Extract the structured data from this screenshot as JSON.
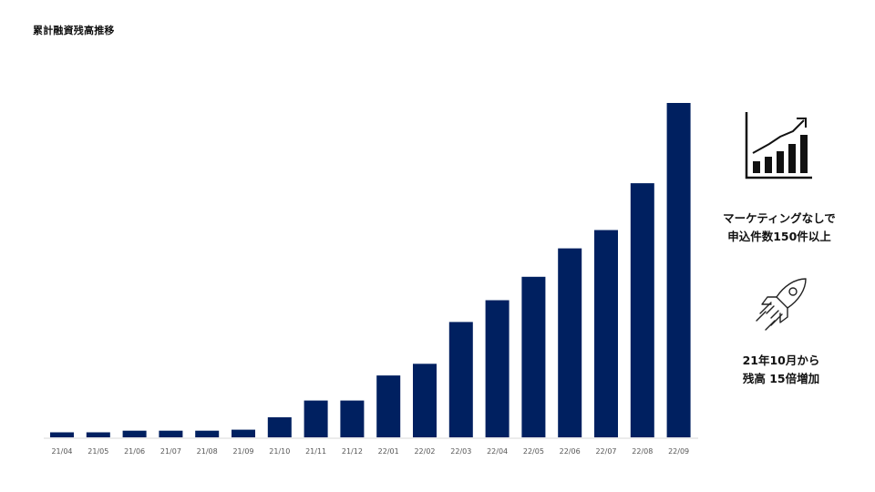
{
  "title": "累計融資残高推移",
  "colors": {
    "bar": "#002060",
    "axis": "#d9d9d9",
    "text": "#111111"
  },
  "chart_data": {
    "type": "bar",
    "title": "",
    "xlabel": "",
    "ylabel": "",
    "categories": [
      "21/04",
      "21/05",
      "21/06",
      "21/07",
      "21/08",
      "21/09",
      "21/10",
      "21/11",
      "21/12",
      "22/01",
      "22/02",
      "22/03",
      "22/04",
      "22/05",
      "22/06",
      "22/07",
      "22/08",
      "22/09"
    ],
    "values": [
      1.5,
      1.5,
      2.0,
      2.0,
      2.0,
      2.3,
      6.0,
      11.0,
      11.0,
      18.5,
      22.0,
      34.5,
      41.0,
      48.0,
      56.5,
      62.0,
      76.0,
      100.0
    ],
    "ylim": [
      0,
      100
    ],
    "grid": false,
    "legend": "none"
  },
  "side": {
    "growth_icon": "bar-chart-growth-icon",
    "rocket_icon": "rocket-icon",
    "caption1": [
      "マーケティングなしで",
      "申込件数150件以上"
    ],
    "caption2": [
      "21年10月から",
      "残高 15倍増加"
    ]
  }
}
